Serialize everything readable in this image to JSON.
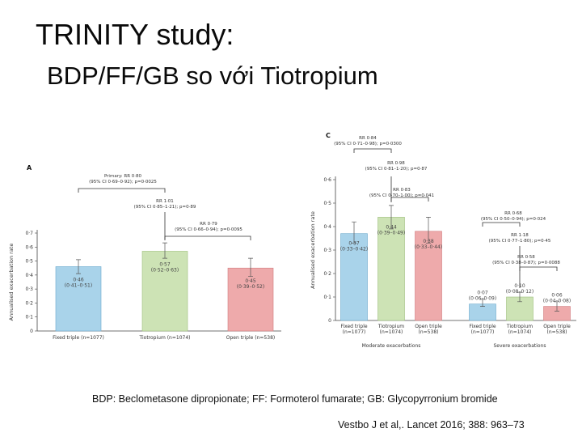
{
  "title": "TRINITY study:",
  "subtitle": "BDP/FF/GB so với Tiotropium",
  "footnote": "BDP: Beclometasone dipropionate; FF: Formoterol fumarate; GB: Glycopyrronium bromide",
  "citation": "Vestbo J et al,. Lancet 2016; 388: 963–73",
  "colors": {
    "fixed_triple": "#a9d3ea",
    "tiotropium": "#cde3b5",
    "open_triple": "#eeaaab"
  },
  "chart_data": [
    {
      "type": "bar",
      "panel": "A",
      "ylabel": "Annualised exacerbation rate",
      "ylim": [
        0,
        0.7
      ],
      "yticks": [
        "0",
        "0·1",
        "0·2",
        "0·3",
        "0·4",
        "0·5",
        "0·6",
        "0·7"
      ],
      "categories": [
        "Fixed triple (n=1077)",
        "Tiotropium (n=1074)",
        "Open triple (n=538)"
      ],
      "values": [
        0.46,
        0.57,
        0.45
      ],
      "ci_low": [
        0.41,
        0.52,
        0.39
      ],
      "ci_high": [
        0.51,
        0.63,
        0.52
      ],
      "value_labels": [
        "0·46\n(0·41–0·51)",
        "0·57\n(0·52–0·63)",
        "0·45\n(0·39–0·52)"
      ],
      "annotations": [
        "Primary: RR 0·80\n(95% CI 0·69–0·92); p=0·0025",
        "RR 1·01\n(95% CI 0·85–1·21); p=0·89",
        "RR 0·79\n(95% CI 0·66–0·94); p=0·0095"
      ]
    },
    {
      "type": "bar",
      "panel": "C",
      "ylabel": "Annualised exacerbation rate",
      "ylim": [
        0,
        0.6
      ],
      "yticks": [
        "0",
        "0·1",
        "0·2",
        "0·3",
        "0·4",
        "0·5",
        "0·6"
      ],
      "groups": [
        {
          "name": "Moderate exacerbations",
          "categories": [
            "Fixed triple (n=1077)",
            "Tiotropium (n=1074)",
            "Open triple (n=538)"
          ],
          "values": [
            0.37,
            0.44,
            0.38
          ],
          "ci_low": [
            0.33,
            0.39,
            0.33
          ],
          "ci_high": [
            0.42,
            0.49,
            0.44
          ],
          "value_labels": [
            "0·37\n(0·33–0·42)",
            "0·44\n(0·39–0·49)",
            "0·38\n(0·33–0·44)"
          ],
          "annotations": [
            "RR 0·84\n(95% CI 0·71–0·98); p=0·0300",
            "RR 0·98\n(95% CI 0·81–1·20); p=0·87",
            "RR 0·83\n(95% CI 0·70–1·00); p=0·041"
          ]
        },
        {
          "name": "Severe exacerbations",
          "categories": [
            "Fixed triple (n=1077)",
            "Tiotropium (n=1074)",
            "Open triple (n=538)"
          ],
          "values": [
            0.07,
            0.1,
            0.06
          ],
          "ci_low": [
            0.06,
            0.08,
            0.04
          ],
          "ci_high": [
            0.09,
            0.12,
            0.08
          ],
          "value_labels": [
            "0·07\n(0·06–0·09)",
            "0·10\n(0·08–0·12)",
            "0·06\n(0·04–0·08)"
          ],
          "annotations": [
            "RR 0·68\n(95% CI 0·50–0·94); p=0·024",
            "RR 1·18\n(95% CI 0·77–1·80); p=0·45",
            "RR 0·58\n(95% CI 0·38–0·87); p=0·0088"
          ]
        }
      ]
    }
  ]
}
